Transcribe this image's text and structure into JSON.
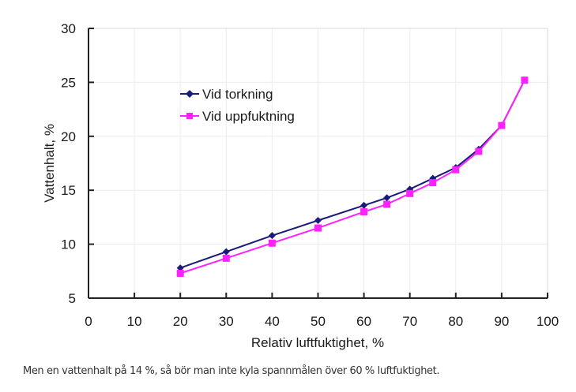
{
  "chart_data": {
    "type": "line",
    "title": "",
    "xlabel": "Relativ luftfuktighet, %",
    "ylabel": "Vattenhalt, %",
    "xlim": [
      0,
      100
    ],
    "ylim": [
      5,
      30
    ],
    "xticks": [
      0,
      10,
      20,
      30,
      40,
      50,
      60,
      70,
      80,
      90,
      100
    ],
    "yticks": [
      5,
      10,
      15,
      20,
      25,
      30
    ],
    "grid": true,
    "legend_position": "top-left",
    "series": [
      {
        "name": "Vid torkning",
        "color": "#1a1a7a",
        "marker": "diamond",
        "x": [
          20,
          30,
          40,
          50,
          60,
          65,
          70,
          75,
          80,
          85,
          90,
          95
        ],
        "y": [
          7.8,
          9.3,
          10.8,
          12.2,
          13.6,
          14.3,
          15.1,
          16.1,
          17.1,
          18.8,
          21.0,
          25.2
        ]
      },
      {
        "name": "Vid uppfuktning",
        "color": "#ff22ff",
        "marker": "square",
        "x": [
          20,
          30,
          40,
          50,
          60,
          65,
          70,
          75,
          80,
          85,
          90,
          95
        ],
        "y": [
          7.3,
          8.7,
          10.1,
          11.5,
          13.0,
          13.7,
          14.7,
          15.7,
          16.9,
          18.6,
          21.0,
          25.2
        ]
      }
    ]
  },
  "caption": "Men en vattenhalt på 14 %, så bör man inte kyla spannmålen över 60 % luftfuktighet."
}
